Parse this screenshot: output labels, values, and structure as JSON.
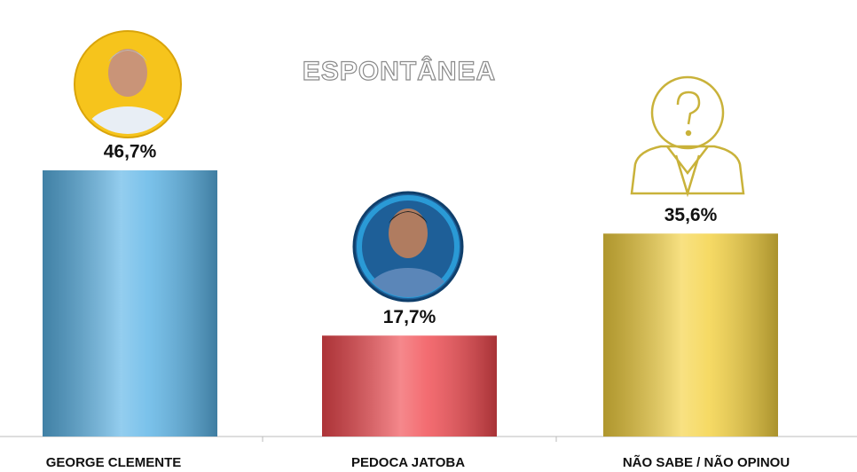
{
  "chart_data": {
    "type": "bar",
    "title": "ESPONTÂNEA",
    "categories": [
      "GEORGE CLEMENTE",
      "PEDOCA JATOBA",
      "NÃO SABE / NÃO OPINOU"
    ],
    "values": [
      46.7,
      17.7,
      35.6
    ],
    "value_labels": [
      "46,7%",
      "17,7%",
      "35,6%"
    ],
    "colors": [
      "#5ab3e6",
      "#f0484e",
      "#f4d13f"
    ]
  }
}
